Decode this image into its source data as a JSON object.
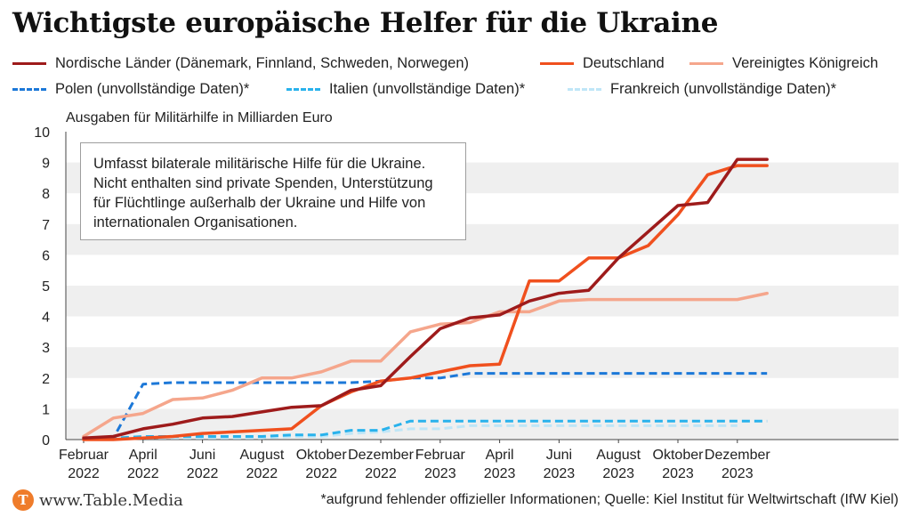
{
  "title": "Wichtigste europäische Helfer für die Ukraine",
  "source_text": "*aufgrund fehlender offizieller Informationen; Quelle: Kiel Institut für Weltwirtschaft (IfW Kiel)",
  "brand": "www.Table.Media",
  "brand_icon": "table-media-logo",
  "note": "Umfasst bilaterale militärische Hilfe für die Ukraine. Nicht enthalten sind private Spenden, Unterstützung für Flüchtlinge außerhalb der Ukraine und Hilfe von internationalen Organisationen.",
  "chart_data": {
    "type": "line",
    "ylabel": "Ausgaben für Militärhilfe in Milliarden Euro",
    "xlabel": "",
    "ylim": [
      0,
      10
    ],
    "yticks": [
      "0",
      "1",
      "2",
      "3",
      "4",
      "5",
      "6",
      "7",
      "8",
      "9",
      "10"
    ],
    "x_range": [
      "2022-02",
      "2024-01"
    ],
    "x_ticks": [
      {
        "month": "2022-02",
        "line1": "Februar",
        "line2": "2022"
      },
      {
        "month": "2022-04",
        "line1": "April",
        "line2": "2022"
      },
      {
        "month": "2022-06",
        "line1": "Juni",
        "line2": "2022"
      },
      {
        "month": "2022-08",
        "line1": "August",
        "line2": "2022"
      },
      {
        "month": "2022-10",
        "line1": "Oktober",
        "line2": "2022"
      },
      {
        "month": "2022-12",
        "line1": "Dezember",
        "line2": "2022"
      },
      {
        "month": "2023-02",
        "line1": "Februar",
        "line2": "2023"
      },
      {
        "month": "2023-04",
        "line1": "April",
        "line2": "2023"
      },
      {
        "month": "2023-06",
        "line1": "Juni",
        "line2": "2023"
      },
      {
        "month": "2023-08",
        "line1": "August",
        "line2": "2023"
      },
      {
        "month": "2023-10",
        "line1": "Oktober",
        "line2": "2023"
      },
      {
        "month": "2023-12",
        "line1": "Dezember",
        "line2": "2023"
      }
    ],
    "grid": "alternating horizontal bands",
    "legend_position": "top",
    "series": [
      {
        "name": "Nordische Länder (Dänemark, Finnland, Schweden, Norwegen)",
        "color": "#9e1b1b",
        "dash": "solid",
        "points": [
          [
            "2022-02",
            0.05
          ],
          [
            "2022-03",
            0.1
          ],
          [
            "2022-04",
            0.35
          ],
          [
            "2022-05",
            0.5
          ],
          [
            "2022-06",
            0.7
          ],
          [
            "2022-07",
            0.75
          ],
          [
            "2022-08",
            0.9
          ],
          [
            "2022-09",
            1.05
          ],
          [
            "2022-10",
            1.1
          ],
          [
            "2022-11",
            1.6
          ],
          [
            "2022-12",
            1.75
          ],
          [
            "2023-01",
            2.7
          ],
          [
            "2023-02",
            3.6
          ],
          [
            "2023-03",
            3.95
          ],
          [
            "2023-04",
            4.05
          ],
          [
            "2023-05",
            4.5
          ],
          [
            "2023-06",
            4.75
          ],
          [
            "2023-07",
            4.85
          ],
          [
            "2023-08",
            5.9
          ],
          [
            "2023-09",
            6.75
          ],
          [
            "2023-10",
            7.6
          ],
          [
            "2023-11",
            7.7
          ],
          [
            "2023-12",
            9.1
          ],
          [
            "2024-01",
            9.1
          ]
        ]
      },
      {
        "name": "Deutschland",
        "color": "#f0501e",
        "dash": "solid",
        "points": [
          [
            "2022-02",
            0.0
          ],
          [
            "2022-03",
            0.0
          ],
          [
            "2022-04",
            0.05
          ],
          [
            "2022-05",
            0.1
          ],
          [
            "2022-06",
            0.2
          ],
          [
            "2022-07",
            0.25
          ],
          [
            "2022-08",
            0.3
          ],
          [
            "2022-09",
            0.35
          ],
          [
            "2022-10",
            1.1
          ],
          [
            "2022-11",
            1.55
          ],
          [
            "2022-12",
            1.9
          ],
          [
            "2023-01",
            2.0
          ],
          [
            "2023-02",
            2.2
          ],
          [
            "2023-03",
            2.4
          ],
          [
            "2023-04",
            2.45
          ],
          [
            "2023-05",
            5.15
          ],
          [
            "2023-06",
            5.15
          ],
          [
            "2023-07",
            5.9
          ],
          [
            "2023-08",
            5.9
          ],
          [
            "2023-09",
            6.3
          ],
          [
            "2023-10",
            7.3
          ],
          [
            "2023-11",
            8.6
          ],
          [
            "2023-12",
            8.9
          ],
          [
            "2024-01",
            8.9
          ]
        ]
      },
      {
        "name": "Vereinigtes Königreich",
        "color": "#f5a68c",
        "dash": "solid",
        "points": [
          [
            "2022-02",
            0.1
          ],
          [
            "2022-03",
            0.7
          ],
          [
            "2022-04",
            0.85
          ],
          [
            "2022-05",
            1.3
          ],
          [
            "2022-06",
            1.35
          ],
          [
            "2022-07",
            1.6
          ],
          [
            "2022-08",
            2.0
          ],
          [
            "2022-09",
            2.0
          ],
          [
            "2022-10",
            2.2
          ],
          [
            "2022-11",
            2.55
          ],
          [
            "2022-12",
            2.55
          ],
          [
            "2023-01",
            3.5
          ],
          [
            "2023-02",
            3.75
          ],
          [
            "2023-03",
            3.8
          ],
          [
            "2023-04",
            4.15
          ],
          [
            "2023-05",
            4.15
          ],
          [
            "2023-06",
            4.5
          ],
          [
            "2023-07",
            4.55
          ],
          [
            "2023-08",
            4.55
          ],
          [
            "2023-09",
            4.55
          ],
          [
            "2023-10",
            4.55
          ],
          [
            "2023-11",
            4.55
          ],
          [
            "2023-12",
            4.55
          ],
          [
            "2024-01",
            4.75
          ]
        ]
      },
      {
        "name": "Polen (unvollständige Daten)*",
        "color": "#1c78d8",
        "dash": "dash",
        "points": [
          [
            "2022-02",
            0.0
          ],
          [
            "2022-03",
            0.05
          ],
          [
            "2022-04",
            1.8
          ],
          [
            "2022-05",
            1.85
          ],
          [
            "2022-06",
            1.85
          ],
          [
            "2022-07",
            1.85
          ],
          [
            "2022-08",
            1.85
          ],
          [
            "2022-09",
            1.85
          ],
          [
            "2022-10",
            1.85
          ],
          [
            "2022-11",
            1.85
          ],
          [
            "2022-12",
            1.9
          ],
          [
            "2023-01",
            2.0
          ],
          [
            "2023-02",
            2.0
          ],
          [
            "2023-03",
            2.15
          ],
          [
            "2023-04",
            2.15
          ],
          [
            "2023-05",
            2.15
          ],
          [
            "2023-06",
            2.15
          ],
          [
            "2023-07",
            2.15
          ],
          [
            "2023-08",
            2.15
          ],
          [
            "2023-09",
            2.15
          ],
          [
            "2023-10",
            2.15
          ],
          [
            "2023-11",
            2.15
          ],
          [
            "2023-12",
            2.15
          ],
          [
            "2024-01",
            2.15
          ]
        ]
      },
      {
        "name": "Italien (unvollständige Daten)*",
        "color": "#29b2ec",
        "dash": "dash",
        "points": [
          [
            "2022-02",
            0.0
          ],
          [
            "2022-03",
            0.05
          ],
          [
            "2022-04",
            0.1
          ],
          [
            "2022-05",
            0.1
          ],
          [
            "2022-06",
            0.1
          ],
          [
            "2022-07",
            0.1
          ],
          [
            "2022-08",
            0.1
          ],
          [
            "2022-09",
            0.15
          ],
          [
            "2022-10",
            0.15
          ],
          [
            "2022-11",
            0.3
          ],
          [
            "2022-12",
            0.3
          ],
          [
            "2023-01",
            0.6
          ],
          [
            "2023-02",
            0.6
          ],
          [
            "2023-03",
            0.6
          ],
          [
            "2023-04",
            0.6
          ],
          [
            "2023-05",
            0.6
          ],
          [
            "2023-06",
            0.6
          ],
          [
            "2023-07",
            0.6
          ],
          [
            "2023-08",
            0.6
          ],
          [
            "2023-09",
            0.6
          ],
          [
            "2023-10",
            0.6
          ],
          [
            "2023-11",
            0.6
          ],
          [
            "2023-12",
            0.6
          ],
          [
            "2024-01",
            0.6
          ]
        ]
      },
      {
        "name": "Frankreich (unvollständige Daten)*",
        "color": "#bfe6f7",
        "dash": "dash",
        "points": [
          [
            "2022-02",
            0.0
          ],
          [
            "2022-03",
            0.05
          ],
          [
            "2022-04",
            0.05
          ],
          [
            "2022-05",
            0.05
          ],
          [
            "2022-06",
            0.05
          ],
          [
            "2022-07",
            0.05
          ],
          [
            "2022-08",
            0.05
          ],
          [
            "2022-09",
            0.1
          ],
          [
            "2022-10",
            0.1
          ],
          [
            "2022-11",
            0.2
          ],
          [
            "2022-12",
            0.25
          ],
          [
            "2023-01",
            0.35
          ],
          [
            "2023-02",
            0.35
          ],
          [
            "2023-03",
            0.45
          ],
          [
            "2023-04",
            0.45
          ],
          [
            "2023-05",
            0.45
          ],
          [
            "2023-06",
            0.45
          ],
          [
            "2023-07",
            0.45
          ],
          [
            "2023-08",
            0.45
          ],
          [
            "2023-09",
            0.45
          ],
          [
            "2023-10",
            0.45
          ],
          [
            "2023-11",
            0.45
          ],
          [
            "2023-12",
            0.45
          ]
        ]
      }
    ]
  }
}
